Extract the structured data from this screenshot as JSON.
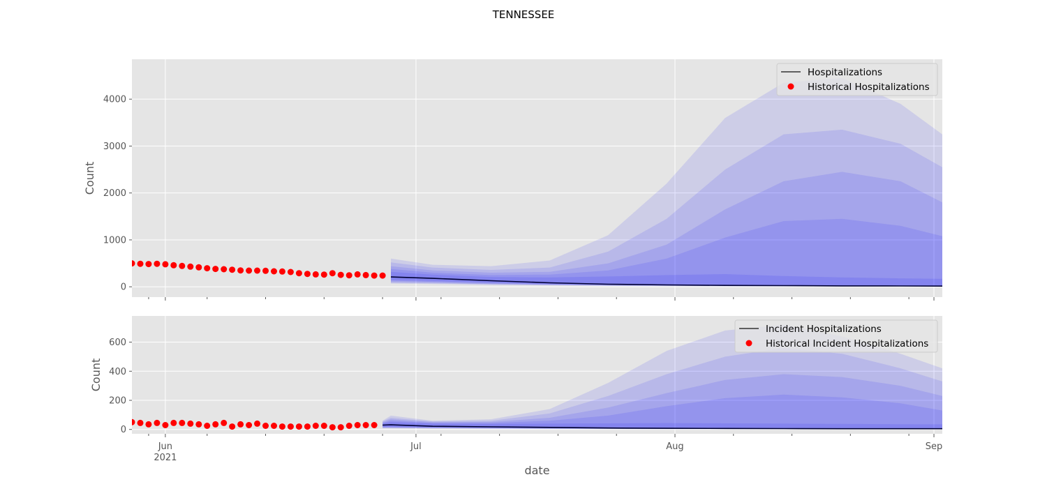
{
  "title": "TENNESSEE",
  "chart_data": [
    {
      "type": "line",
      "ylabel": "Count",
      "xlabel": "",
      "xlim": [
        "2021-05-28",
        "2021-09-02"
      ],
      "ylim": [
        -220,
        4850
      ],
      "yticks": [
        0,
        1000,
        2000,
        3000,
        4000
      ],
      "grid": true,
      "legend_position": "top-right",
      "legend": [
        "Hospitalizations",
        "Historical Hospitalizations"
      ],
      "historical": {
        "name": "Historical Hospitalizations",
        "color": "#ff0000",
        "start": "2021-05-28",
        "values": [
          500,
          490,
          485,
          490,
          480,
          460,
          445,
          430,
          415,
          395,
          380,
          375,
          365,
          350,
          345,
          345,
          340,
          330,
          325,
          315,
          290,
          275,
          265,
          260,
          290,
          255,
          245,
          265,
          250,
          240,
          240
        ]
      },
      "forecast": {
        "name": "Hospitalizations",
        "line_color": "#000033",
        "band_color": "#0000ff",
        "x": [
          "2021-06-28",
          "2021-07-03",
          "2021-07-10",
          "2021-07-17",
          "2021-07-24",
          "2021-07-31",
          "2021-08-07",
          "2021-08-14",
          "2021-08-21",
          "2021-08-28",
          "2021-09-02"
        ],
        "median": [
          210,
          180,
          130,
          85,
          55,
          40,
          30,
          25,
          20,
          18,
          15
        ],
        "bands": [
          {
            "lower": [
              70,
              60,
              40,
              30,
              20,
              15,
              10,
              10,
              8,
              8,
              8
            ],
            "upper": [
              600,
              470,
              440,
              560,
              1100,
              2200,
              3600,
              4350,
              4450,
              3900,
              3250
            ]
          },
          {
            "lower": [
              85,
              75,
              50,
              35,
              25,
              20,
              15,
              12,
              10,
              10,
              10
            ],
            "upper": [
              520,
              410,
              360,
              410,
              750,
              1450,
              2500,
              3250,
              3350,
              3050,
              2550
            ]
          },
          {
            "lower": [
              105,
              90,
              60,
              42,
              30,
              24,
              18,
              15,
              12,
              12,
              12
            ],
            "upper": [
              440,
              350,
              300,
              320,
              500,
              900,
              1650,
              2250,
              2450,
              2250,
              1800
            ]
          },
          {
            "lower": [
              130,
              105,
              75,
              50,
              35,
              28,
              22,
              18,
              15,
              14,
              14
            ],
            "upper": [
              380,
              300,
              250,
              260,
              350,
              600,
              1050,
              1400,
              1450,
              1300,
              1080
            ]
          },
          {
            "lower": [
              150,
              125,
              90,
              60,
              42,
              33,
              26,
              21,
              18,
              16,
              16
            ],
            "upper": [
              320,
              260,
              210,
              200,
              220,
              250,
              270,
              230,
              200,
              180,
              170
            ]
          }
        ]
      }
    },
    {
      "type": "line",
      "ylabel": "Count",
      "xlabel": "date",
      "xlim": [
        "2021-05-28",
        "2021-09-02"
      ],
      "ylim": [
        -30,
        780
      ],
      "yticks": [
        0,
        200,
        400,
        600
      ],
      "grid": true,
      "legend_position": "top-right",
      "legend": [
        "Incident Hospitalizations",
        "Historical Incident Hospitalizations"
      ],
      "xticks_major": [
        {
          "date": "2021-06-01",
          "label": "Jun",
          "sub": "2021"
        },
        {
          "date": "2021-07-01",
          "label": "Jul",
          "sub": ""
        },
        {
          "date": "2021-08-01",
          "label": "Aug",
          "sub": ""
        },
        {
          "date": "2021-09-01",
          "label": "Sep",
          "sub": ""
        }
      ],
      "historical": {
        "name": "Historical Incident Hospitalizations",
        "color": "#ff0000",
        "start": "2021-05-28",
        "values": [
          50,
          45,
          35,
          45,
          30,
          45,
          45,
          40,
          35,
          25,
          35,
          45,
          20,
          35,
          30,
          40,
          25,
          25,
          20,
          20,
          20,
          20,
          25,
          25,
          15,
          15,
          25,
          30,
          30,
          30
        ]
      },
      "forecast": {
        "name": "Incident Hospitalizations",
        "line_color": "#000033",
        "band_color": "#0000ff",
        "x": [
          "2021-06-27",
          "2021-06-28",
          "2021-07-03",
          "2021-07-10",
          "2021-07-17",
          "2021-07-24",
          "2021-07-31",
          "2021-08-07",
          "2021-08-14",
          "2021-08-21",
          "2021-08-28",
          "2021-09-02"
        ],
        "median": [
          30,
          32,
          22,
          18,
          14,
          10,
          8,
          7,
          6,
          5,
          5,
          5
        ],
        "bands": [
          {
            "lower": [
              8,
              8,
              6,
              5,
              4,
              3,
              2,
              2,
              2,
              2,
              2,
              2
            ],
            "upper": [
              60,
              95,
              60,
              70,
              140,
              320,
              540,
              680,
              720,
              640,
              520,
              420
            ]
          },
          {
            "lower": [
              10,
              10,
              8,
              6,
              5,
              4,
              3,
              3,
              3,
              3,
              3,
              3
            ],
            "upper": [
              55,
              80,
              55,
              60,
              110,
              230,
              380,
              500,
              560,
              520,
              420,
              330
            ]
          },
          {
            "lower": [
              12,
              12,
              10,
              8,
              6,
              5,
              4,
              4,
              4,
              4,
              4,
              4
            ],
            "upper": [
              50,
              70,
              50,
              52,
              80,
              150,
              250,
              340,
              380,
              360,
              300,
              230
            ]
          },
          {
            "lower": [
              15,
              15,
              12,
              10,
              8,
              6,
              5,
              5,
              5,
              5,
              5,
              5
            ],
            "upper": [
              45,
              60,
              45,
              45,
              60,
              95,
              160,
              215,
              240,
              220,
              180,
              130
            ]
          },
          {
            "lower": [
              18,
              18,
              14,
              11,
              9,
              7,
              6,
              6,
              5,
              5,
              5,
              5
            ],
            "upper": [
              40,
              50,
              40,
              38,
              40,
              42,
              44,
              42,
              40,
              38,
              36,
              35
            ]
          }
        ]
      }
    }
  ]
}
